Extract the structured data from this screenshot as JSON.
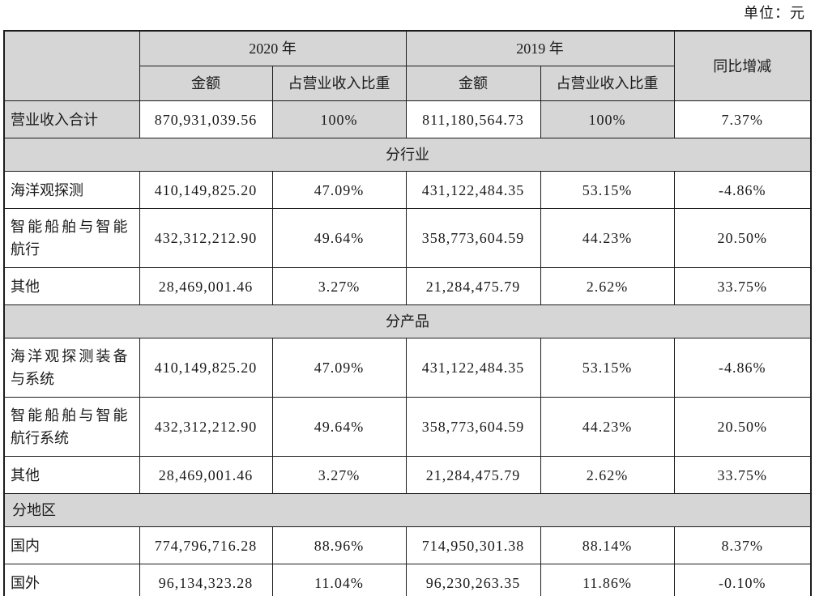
{
  "unit_label": "单位：元",
  "colors": {
    "header_bg": "#d6d6d6",
    "border": "#1c1c1c",
    "text": "#1a1a1a"
  },
  "table": {
    "header": {
      "year_groups": [
        "2020 年",
        "2019 年"
      ],
      "sub_headers": [
        "金额",
        "占营业收入比重",
        "金额",
        "占营业收入比重"
      ],
      "change_label": "同比增减"
    },
    "rows": [
      {
        "type": "data",
        "shaded": true,
        "label": "营业收入合计",
        "cells": [
          "870,931,039.56",
          "100%",
          "811,180,564.73",
          "100%",
          "7.37%"
        ]
      },
      {
        "type": "section",
        "align": "center",
        "label": "分行业"
      },
      {
        "type": "data",
        "shaded": false,
        "label": "海洋观探测",
        "cells": [
          "410,149,825.20",
          "47.09%",
          "431,122,484.35",
          "53.15%",
          "-4.86%"
        ]
      },
      {
        "type": "data",
        "shaded": false,
        "label": "智能船舶与智能\n航行",
        "cells": [
          "432,312,212.90",
          "49.64%",
          "358,773,604.59",
          "44.23%",
          "20.50%"
        ]
      },
      {
        "type": "data",
        "shaded": false,
        "label": "其他",
        "cells": [
          "28,469,001.46",
          "3.27%",
          "21,284,475.79",
          "2.62%",
          "33.75%"
        ]
      },
      {
        "type": "section",
        "align": "center",
        "label": "分产品"
      },
      {
        "type": "data",
        "shaded": false,
        "label": "海洋观探测装备\n与系统",
        "cells": [
          "410,149,825.20",
          "47.09%",
          "431,122,484.35",
          "53.15%",
          "-4.86%"
        ]
      },
      {
        "type": "data",
        "shaded": false,
        "label": "智能船舶与智能\n航行系统",
        "cells": [
          "432,312,212.90",
          "49.64%",
          "358,773,604.59",
          "44.23%",
          "20.50%"
        ]
      },
      {
        "type": "data",
        "shaded": false,
        "label": "其他",
        "cells": [
          "28,469,001.46",
          "3.27%",
          "21,284,475.79",
          "2.62%",
          "33.75%"
        ]
      },
      {
        "type": "section",
        "align": "left",
        "label": "分地区"
      },
      {
        "type": "data",
        "shaded": false,
        "label": "国内",
        "cells": [
          "774,796,716.28",
          "88.96%",
          "714,950,301.38",
          "88.14%",
          "8.37%"
        ]
      },
      {
        "type": "data",
        "shaded": false,
        "label": "国外",
        "cells": [
          "96,134,323.28",
          "11.04%",
          "96,230,263.35",
          "11.86%",
          "-0.10%"
        ]
      }
    ]
  }
}
